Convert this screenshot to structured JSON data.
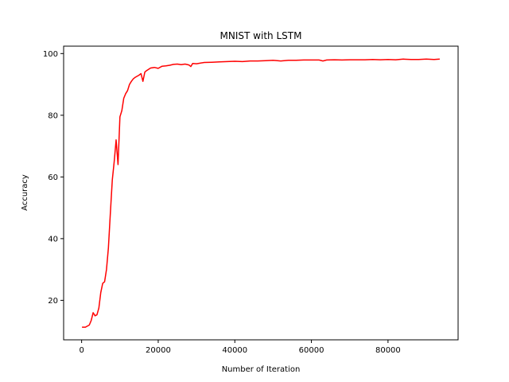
{
  "chart_data": {
    "type": "line",
    "title": "MNIST with LSTM",
    "xlabel": "Number of Iteration",
    "ylabel": "Accuracy",
    "xlim": [
      -4700,
      98300
    ],
    "ylim": [
      7.2,
      102.4
    ],
    "xticks": [
      0,
      20000,
      40000,
      60000,
      80000
    ],
    "xtick_labels": [
      "0",
      "20000",
      "40000",
      "60000",
      "80000"
    ],
    "yticks": [
      20,
      40,
      60,
      80,
      100
    ],
    "ytick_labels": [
      "20",
      "40",
      "60",
      "80",
      "100"
    ],
    "grid": false,
    "legend": "none",
    "series": [
      {
        "color": "#ff0000",
        "x": [
          100,
          1000,
          2000,
          2500,
          3000,
          3500,
          4000,
          4500,
          5000,
          5500,
          6000,
          6500,
          7000,
          7500,
          8000,
          8500,
          9000,
          9500,
          10000,
          10500,
          11000,
          11500,
          12000,
          12500,
          13000,
          13500,
          14000,
          15000,
          15500,
          16000,
          16500,
          17000,
          18000,
          19000,
          20000,
          21000,
          22000,
          23000,
          24000,
          25000,
          26000,
          27000,
          28000,
          28500,
          29000,
          30000,
          32000,
          34000,
          36000,
          38000,
          40000,
          42000,
          44000,
          46000,
          48000,
          50000,
          52000,
          54000,
          56000,
          58000,
          60000,
          62000,
          63000,
          64000,
          66000,
          68000,
          70000,
          72000,
          74000,
          76000,
          78000,
          80000,
          82000,
          84000,
          86000,
          88000,
          90000,
          92000,
          93500
        ],
        "y": [
          11.3,
          11.3,
          12.0,
          13.5,
          16.0,
          15.0,
          15.3,
          17.5,
          22.5,
          25.5,
          26.0,
          30.0,
          37.0,
          48.0,
          59.0,
          65.0,
          72.0,
          64.0,
          79.5,
          81.5,
          85.5,
          87.0,
          88.0,
          90.0,
          91.0,
          91.8,
          92.3,
          93.0,
          93.5,
          91.0,
          94.0,
          94.5,
          95.3,
          95.5,
          95.2,
          95.9,
          96.0,
          96.2,
          96.5,
          96.6,
          96.4,
          96.6,
          96.3,
          95.8,
          96.8,
          96.7,
          97.1,
          97.2,
          97.3,
          97.4,
          97.5,
          97.4,
          97.6,
          97.6,
          97.7,
          97.8,
          97.6,
          97.8,
          97.8,
          97.9,
          97.9,
          97.9,
          97.6,
          97.9,
          98.0,
          97.9,
          98.0,
          98.0,
          98.0,
          98.1,
          98.0,
          98.1,
          98.0,
          98.2,
          98.1,
          98.1,
          98.2,
          98.1,
          98.2
        ]
      }
    ]
  }
}
